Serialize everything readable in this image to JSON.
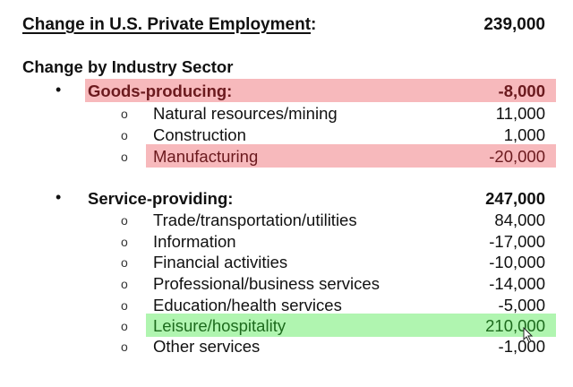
{
  "header": {
    "title": "Change in U.S. Private Employment",
    "title_colon": ":",
    "total": "239,000"
  },
  "subheading": "Change by Industry Sector",
  "colors": {
    "negative_highlight": "#f7b9bc",
    "negative_text": "#6b1a1e",
    "positive_highlight": "#b0f5b0",
    "positive_text": "#1d6b1d"
  },
  "rows": [
    {
      "level": 1,
      "label": "Goods-producing:",
      "value": "-8,000",
      "highlight": "negative"
    },
    {
      "level": 2,
      "label": "Natural resources/mining",
      "value": "11,000"
    },
    {
      "level": 2,
      "label": "Construction",
      "value": "1,000"
    },
    {
      "level": 2,
      "label": "Manufacturing",
      "value": "-20,000",
      "highlight": "negative"
    },
    {
      "level": 1,
      "label": "Service-providing:",
      "value": "247,000",
      "gap": true
    },
    {
      "level": 2,
      "label": "Trade/transportation/utilities",
      "value": "84,000"
    },
    {
      "level": 2,
      "label": "Information",
      "value": "-17,000"
    },
    {
      "level": 2,
      "label": "Financial activities",
      "value": "-10,000"
    },
    {
      "level": 2,
      "label": "Professional/business services",
      "value": "-14,000"
    },
    {
      "level": 2,
      "label": "Education/health services",
      "value": "-5,000"
    },
    {
      "level": 2,
      "label": "Leisure/hospitality",
      "value": "210,000",
      "highlight": "positive"
    },
    {
      "level": 2,
      "label": "Other services",
      "value": "-1,000"
    }
  ],
  "bullets": {
    "level1": "•",
    "level2": "o"
  }
}
